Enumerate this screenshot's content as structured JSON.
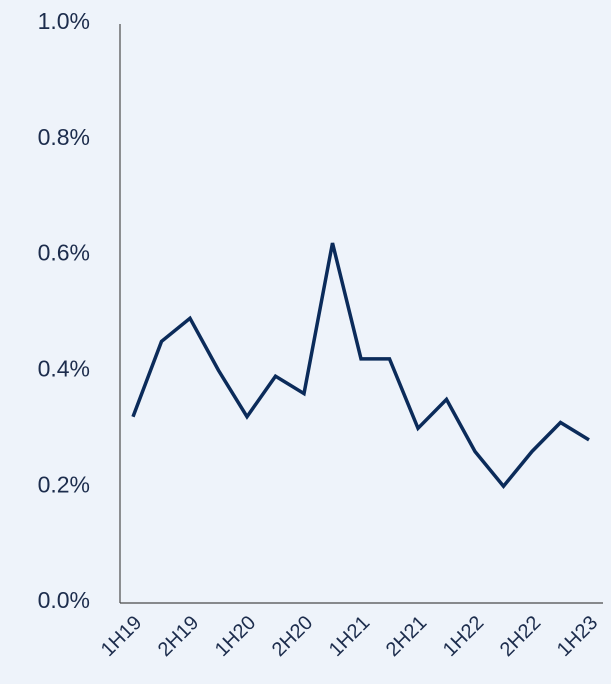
{
  "chart_data": {
    "type": "line",
    "categories": [
      "1H19",
      null,
      "2H19",
      null,
      "1H20",
      null,
      "2H20",
      null,
      "1H21",
      null,
      "2H21",
      null,
      "1H22",
      null,
      "2H22",
      null,
      "1H23"
    ],
    "series": [
      {
        "color": "#0b2b5a",
        "values": [
          0.32,
          0.45,
          0.49,
          0.4,
          0.32,
          0.39,
          0.36,
          0.62,
          0.42,
          0.42,
          0.3,
          0.35,
          0.26,
          0.2,
          0.26,
          0.31,
          0.28
        ]
      }
    ],
    "ylim": [
      0,
      1
    ],
    "yticks": [
      {
        "value": 0,
        "label": "0.0%"
      },
      {
        "value": 0.2,
        "label": "0.2%"
      },
      {
        "value": 0.4,
        "label": "0.4%"
      },
      {
        "value": 0.6,
        "label": "0.6%"
      },
      {
        "value": 0.8,
        "label": "0.8%"
      },
      {
        "value": 1,
        "label": "1.0%"
      }
    ],
    "grid": false
  }
}
